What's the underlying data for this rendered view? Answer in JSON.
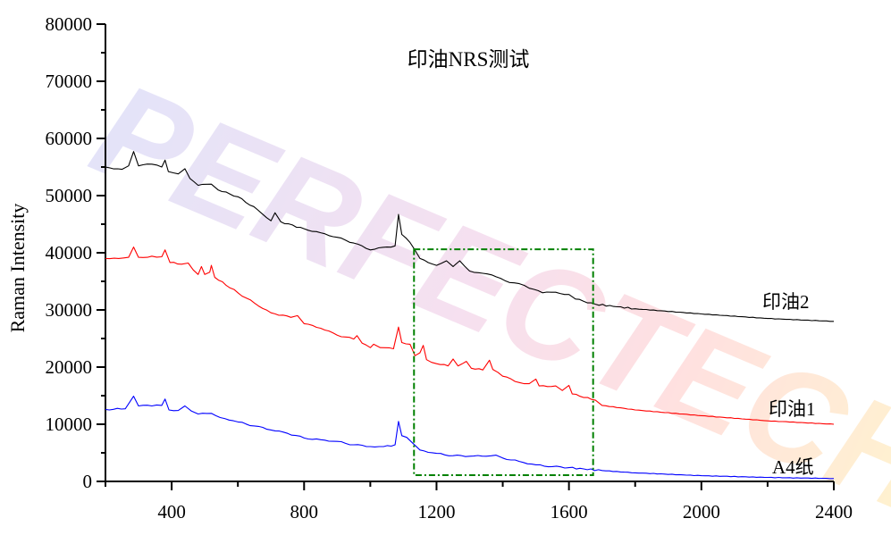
{
  "chart_data": {
    "type": "line",
    "title": "印油NRS测试",
    "xlabel": "",
    "ylabel": "Raman Intensity",
    "xlim": [
      200,
      2400
    ],
    "ylim": [
      0,
      80000
    ],
    "x_ticks": [
      400,
      800,
      1200,
      1600,
      2000,
      2400
    ],
    "y_ticks": [
      0,
      10000,
      20000,
      30000,
      40000,
      50000,
      60000,
      70000,
      80000
    ],
    "grid": false,
    "legend_position": "inline-right",
    "series": [
      {
        "name": "印油2",
        "color": "#000000",
        "points": [
          [
            200,
            55000
          ],
          [
            250,
            54600
          ],
          [
            270,
            55200
          ],
          [
            285,
            57700
          ],
          [
            300,
            55200
          ],
          [
            340,
            55500
          ],
          [
            370,
            55000
          ],
          [
            380,
            56200
          ],
          [
            390,
            54200
          ],
          [
            420,
            53800
          ],
          [
            440,
            54700
          ],
          [
            455,
            53000
          ],
          [
            480,
            51800
          ],
          [
            520,
            52000
          ],
          [
            540,
            51000
          ],
          [
            600,
            49800
          ],
          [
            660,
            47500
          ],
          [
            700,
            45600
          ],
          [
            712,
            47000
          ],
          [
            730,
            45400
          ],
          [
            800,
            44200
          ],
          [
            850,
            43500
          ],
          [
            900,
            42700
          ],
          [
            950,
            41700
          ],
          [
            1000,
            40500
          ],
          [
            1050,
            41000
          ],
          [
            1075,
            41200
          ],
          [
            1085,
            46700
          ],
          [
            1095,
            43200
          ],
          [
            1120,
            41800
          ],
          [
            1150,
            39000
          ],
          [
            1200,
            37800
          ],
          [
            1230,
            38600
          ],
          [
            1250,
            37600
          ],
          [
            1270,
            38600
          ],
          [
            1300,
            36800
          ],
          [
            1340,
            36400
          ],
          [
            1380,
            35800
          ],
          [
            1420,
            34800
          ],
          [
            1450,
            34600
          ],
          [
            1480,
            33800
          ],
          [
            1520,
            33000
          ],
          [
            1560,
            33100
          ],
          [
            1600,
            32700
          ],
          [
            1620,
            31900
          ],
          [
            1680,
            31000
          ],
          [
            1800,
            30200
          ],
          [
            2000,
            29300
          ],
          [
            2200,
            28500
          ],
          [
            2400,
            28000
          ]
        ]
      },
      {
        "name": "印油1",
        "color": "#ff0000",
        "points": [
          [
            200,
            39000
          ],
          [
            240,
            39000
          ],
          [
            270,
            39200
          ],
          [
            285,
            41000
          ],
          [
            300,
            39200
          ],
          [
            340,
            39400
          ],
          [
            370,
            39300
          ],
          [
            380,
            40500
          ],
          [
            395,
            38300
          ],
          [
            430,
            38000
          ],
          [
            450,
            38200
          ],
          [
            465,
            37000
          ],
          [
            480,
            36200
          ],
          [
            490,
            37600
          ],
          [
            500,
            36200
          ],
          [
            515,
            36600
          ],
          [
            520,
            37800
          ],
          [
            530,
            35700
          ],
          [
            600,
            33000
          ],
          [
            650,
            31200
          ],
          [
            700,
            29500
          ],
          [
            760,
            28700
          ],
          [
            780,
            29000
          ],
          [
            800,
            27600
          ],
          [
            850,
            26800
          ],
          [
            900,
            25600
          ],
          [
            950,
            24900
          ],
          [
            960,
            25500
          ],
          [
            975,
            24200
          ],
          [
            1000,
            23400
          ],
          [
            1010,
            24000
          ],
          [
            1030,
            23400
          ],
          [
            1070,
            23200
          ],
          [
            1085,
            27000
          ],
          [
            1095,
            24300
          ],
          [
            1120,
            24000
          ],
          [
            1135,
            22000
          ],
          [
            1150,
            22500
          ],
          [
            1160,
            23800
          ],
          [
            1170,
            21300
          ],
          [
            1200,
            20600
          ],
          [
            1235,
            20200
          ],
          [
            1250,
            21400
          ],
          [
            1265,
            20200
          ],
          [
            1290,
            21000
          ],
          [
            1305,
            19800
          ],
          [
            1340,
            19500
          ],
          [
            1360,
            21200
          ],
          [
            1370,
            19600
          ],
          [
            1400,
            18400
          ],
          [
            1450,
            17300
          ],
          [
            1480,
            17100
          ],
          [
            1500,
            17900
          ],
          [
            1510,
            16700
          ],
          [
            1560,
            16700
          ],
          [
            1580,
            15900
          ],
          [
            1600,
            16800
          ],
          [
            1610,
            15300
          ],
          [
            1680,
            14200
          ],
          [
            1700,
            13300
          ],
          [
            1800,
            12500
          ],
          [
            2000,
            11500
          ],
          [
            2200,
            10600
          ],
          [
            2400,
            10000
          ]
        ]
      },
      {
        "name": "A4纸",
        "color": "#0000ff",
        "points": [
          [
            200,
            12600
          ],
          [
            260,
            12700
          ],
          [
            285,
            14900
          ],
          [
            300,
            13200
          ],
          [
            340,
            13200
          ],
          [
            370,
            13300
          ],
          [
            380,
            14400
          ],
          [
            392,
            12500
          ],
          [
            420,
            12400
          ],
          [
            440,
            13200
          ],
          [
            460,
            12300
          ],
          [
            480,
            11800
          ],
          [
            520,
            11900
          ],
          [
            560,
            11000
          ],
          [
            600,
            10400
          ],
          [
            650,
            9700
          ],
          [
            700,
            9000
          ],
          [
            750,
            8400
          ],
          [
            800,
            7600
          ],
          [
            850,
            7300
          ],
          [
            900,
            7000
          ],
          [
            950,
            6400
          ],
          [
            1000,
            6100
          ],
          [
            1040,
            6100
          ],
          [
            1075,
            6400
          ],
          [
            1085,
            10500
          ],
          [
            1095,
            8000
          ],
          [
            1110,
            7700
          ],
          [
            1130,
            6600
          ],
          [
            1150,
            5500
          ],
          [
            1200,
            4900
          ],
          [
            1250,
            4500
          ],
          [
            1300,
            4400
          ],
          [
            1350,
            4400
          ],
          [
            1380,
            4600
          ],
          [
            1400,
            4100
          ],
          [
            1450,
            3500
          ],
          [
            1500,
            2900
          ],
          [
            1550,
            2600
          ],
          [
            1600,
            2400
          ],
          [
            1700,
            1900
          ],
          [
            1800,
            1500
          ],
          [
            2000,
            1000
          ],
          [
            2200,
            700
          ],
          [
            2400,
            500
          ]
        ]
      }
    ],
    "annotations": [
      {
        "type": "dash-dot-rect",
        "color": "#008000",
        "x0": 1132,
        "x1": 1673,
        "y0": 1100,
        "y1": 40600
      }
    ]
  },
  "labels": {
    "title": "印油NRS测试",
    "ylabel": "Raman Intensity",
    "series_2": "印油2",
    "series_1": "印油1",
    "series_a4": "A4纸",
    "watermark": "PERFECTECH"
  }
}
